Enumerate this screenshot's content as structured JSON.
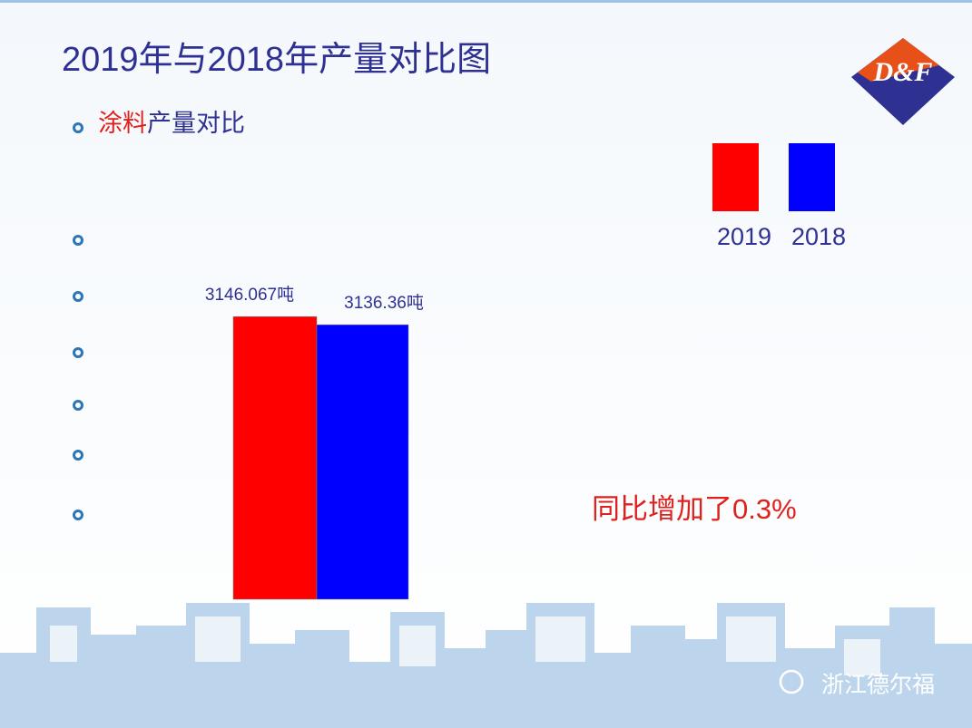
{
  "chart_data": {
    "type": "bar",
    "title": "2019年与2018年产量对比图",
    "subtitle_parts": [
      "涂料",
      "产量对比"
    ],
    "annotation": "同比增加了0.3%",
    "logo": "D&F",
    "watermark": "浙江德尔福",
    "categories": [
      null
    ],
    "series": [
      {
        "name": "2019",
        "color": "#ff0000",
        "values": [
          3146.067
        ],
        "value_labels": [
          "3146.067吨"
        ]
      },
      {
        "name": "2018",
        "color": "#0000ff",
        "values": [
          3136.36
        ],
        "value_labels": [
          "3136.36吨"
        ]
      }
    ],
    "ylim": [
      2810,
      3170
    ]
  }
}
